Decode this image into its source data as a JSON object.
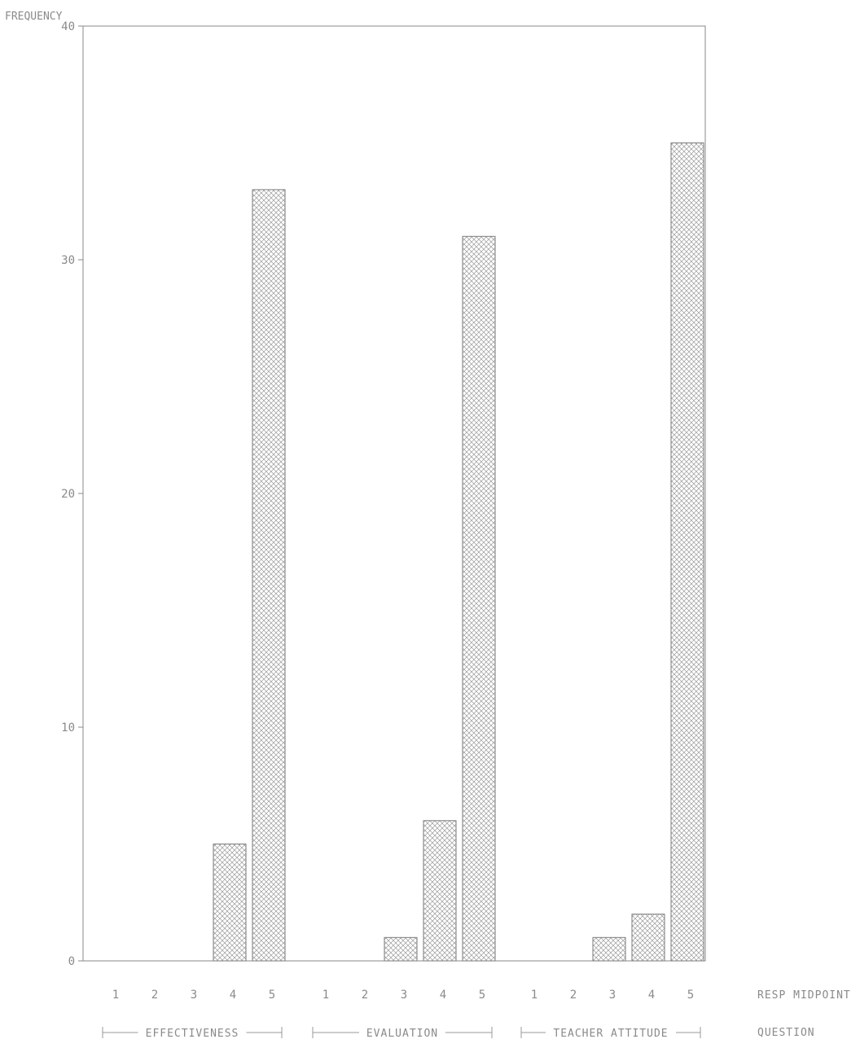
{
  "chart_data": {
    "type": "bar",
    "ylabel": "FREQUENCY",
    "ylim": [
      0,
      40
    ],
    "yticks": [
      "0",
      "10",
      "20",
      "30",
      "40"
    ],
    "x_axis_labels": {
      "midpoint_row": "RESP MIDPOINT",
      "group_row": "QUESTION"
    },
    "groups": [
      {
        "label": "EFFECTIVENESS",
        "categories": [
          "1",
          "2",
          "3",
          "4",
          "5"
        ],
        "values": [
          0,
          0,
          0,
          5,
          33
        ]
      },
      {
        "label": "EVALUATION",
        "categories": [
          "1",
          "2",
          "3",
          "4",
          "5"
        ],
        "values": [
          0,
          0,
          1,
          6,
          31
        ]
      },
      {
        "label": "TEACHER ATTITUDE",
        "categories": [
          "1",
          "2",
          "3",
          "4",
          "5"
        ],
        "values": [
          0,
          0,
          1,
          2,
          35
        ]
      }
    ],
    "grid": false,
    "colors": {
      "axis": "#8a8a8a",
      "bar_outline": "#7a7a7a",
      "hatch": "#9a9a9a"
    }
  }
}
